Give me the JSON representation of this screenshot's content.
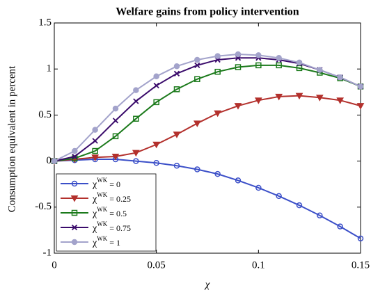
{
  "chart_data": {
    "type": "line",
    "title": "Welfare gains from policy intervention",
    "xlabel": "χ",
    "ylabel": "Consumption equivalent in percent",
    "x": [
      0,
      0.01,
      0.02,
      0.03,
      0.04,
      0.05,
      0.06,
      0.07,
      0.08,
      0.09,
      0.1,
      0.11,
      0.12,
      0.13,
      0.14,
      0.15
    ],
    "xlim": [
      0,
      0.15
    ],
    "xticks": [
      0,
      0.05,
      0.1,
      0.15
    ],
    "ylim": [
      -1,
      1.5
    ],
    "yticks": [
      -1,
      -0.5,
      0,
      0.5,
      1,
      1.5
    ],
    "grid": false,
    "legend": "lower left",
    "series": [
      {
        "name": "χWK = 0",
        "color": "#3b4fc8",
        "marker": "circle-open",
        "values": [
          0,
          0.01,
          0.02,
          0.02,
          0.0,
          -0.02,
          -0.05,
          -0.09,
          -0.14,
          -0.21,
          -0.29,
          -0.38,
          -0.48,
          -0.59,
          -0.71,
          -0.84
        ]
      },
      {
        "name": "χWK = 0.25",
        "color": "#b3302c",
        "marker": "triangle-down",
        "values": [
          0,
          0.02,
          0.04,
          0.05,
          0.09,
          0.18,
          0.29,
          0.41,
          0.52,
          0.6,
          0.66,
          0.7,
          0.71,
          0.69,
          0.66,
          0.6
        ]
      },
      {
        "name": "χWK = 0.5",
        "color": "#1b7a1b",
        "marker": "square-open",
        "values": [
          0,
          0.03,
          0.11,
          0.27,
          0.46,
          0.64,
          0.78,
          0.89,
          0.97,
          1.02,
          1.04,
          1.04,
          1.01,
          0.96,
          0.9,
          0.81
        ]
      },
      {
        "name": "χWK = 0.75",
        "color": "#3a0b6b",
        "marker": "x",
        "values": [
          0,
          0.05,
          0.22,
          0.44,
          0.65,
          0.82,
          0.95,
          1.04,
          1.1,
          1.12,
          1.12,
          1.1,
          1.06,
          0.99,
          0.91,
          0.81
        ]
      },
      {
        "name": "χWK = 1",
        "color": "#a3a3cb",
        "marker": "circle",
        "values": [
          0,
          0.11,
          0.34,
          0.57,
          0.77,
          0.92,
          1.03,
          1.1,
          1.14,
          1.16,
          1.15,
          1.12,
          1.07,
          0.99,
          0.91,
          0.81
        ]
      }
    ]
  }
}
